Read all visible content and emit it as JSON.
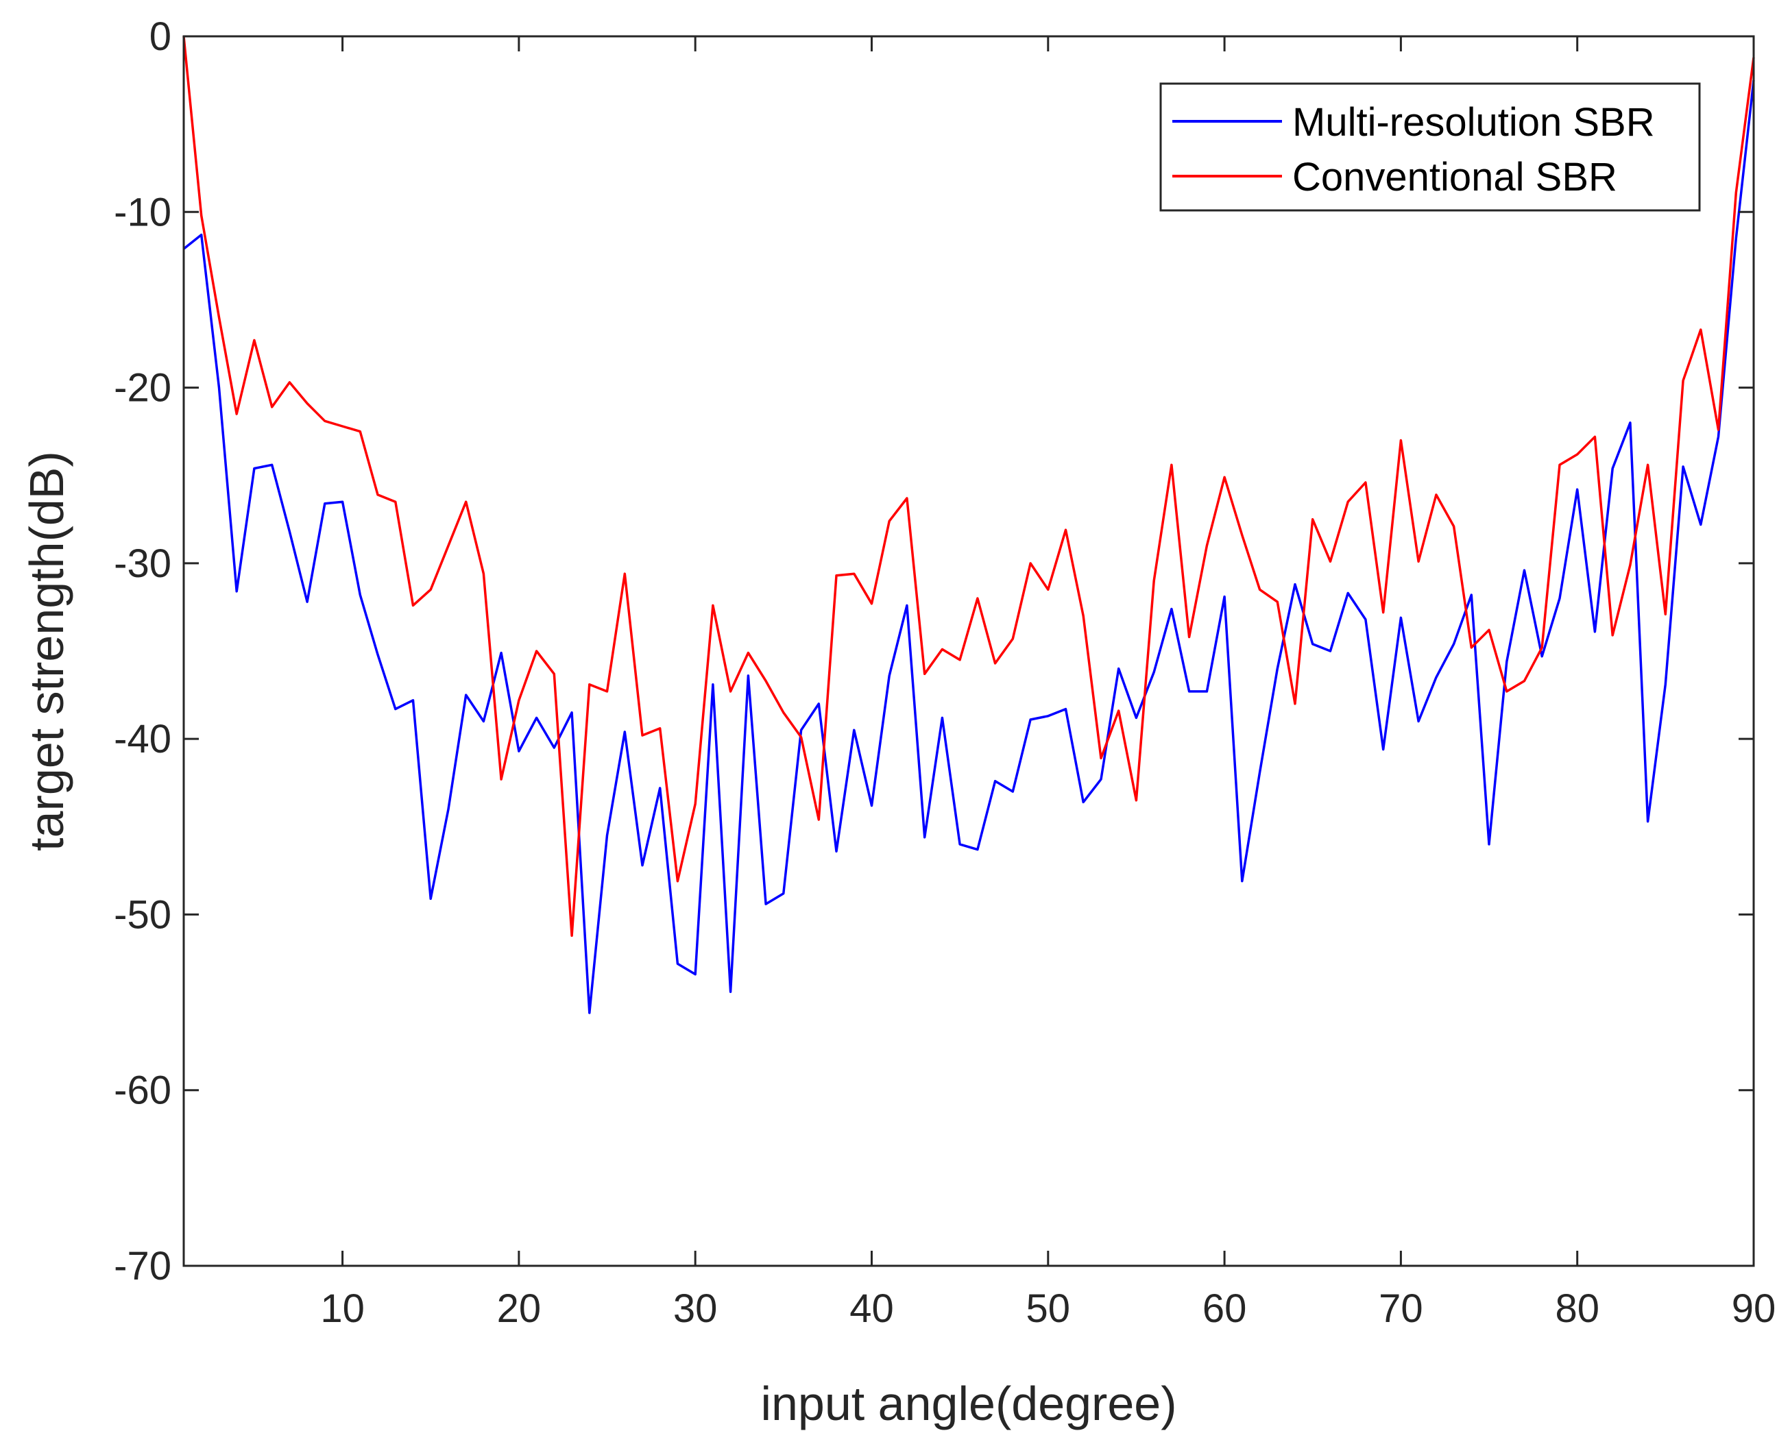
{
  "chart_data": {
    "type": "line",
    "title": "",
    "xlabel": "input angle(degree)",
    "ylabel": "target strength(dB)",
    "xlim": [
      1,
      90
    ],
    "ylim": [
      -70,
      0
    ],
    "xticks": [
      10,
      20,
      30,
      40,
      50,
      60,
      70,
      80,
      90
    ],
    "xtick_labels": [
      "10",
      "20",
      "30",
      "40",
      "50",
      "60",
      "70",
      "80",
      "90"
    ],
    "yticks": [
      0,
      -10,
      -20,
      -30,
      -40,
      -50,
      -60,
      -70
    ],
    "ytick_labels": [
      "0",
      "-10",
      "-20",
      "-30",
      "-40",
      "-50",
      "-60",
      "-70"
    ],
    "grid": false,
    "legend_position": "top-right",
    "x": [
      1,
      2,
      3,
      4,
      5,
      6,
      7,
      8,
      9,
      10,
      11,
      12,
      13,
      14,
      15,
      16,
      17,
      18,
      19,
      20,
      21,
      22,
      23,
      24,
      25,
      26,
      27,
      28,
      29,
      30,
      31,
      32,
      33,
      34,
      35,
      36,
      37,
      38,
      39,
      40,
      41,
      42,
      43,
      44,
      45,
      46,
      47,
      48,
      49,
      50,
      51,
      52,
      53,
      54,
      55,
      56,
      57,
      58,
      59,
      60,
      61,
      62,
      63,
      64,
      65,
      66,
      67,
      68,
      69,
      70,
      71,
      72,
      73,
      74,
      75,
      76,
      77,
      78,
      79,
      80,
      81,
      82,
      83,
      84,
      85,
      86,
      87,
      88,
      89,
      90
    ],
    "series": [
      {
        "name": "Multi-resolution SBR",
        "color": "#0000ff",
        "values": [
          -12.1,
          -11.3,
          -20.0,
          -31.6,
          -24.6,
          -24.4,
          -28.2,
          -32.2,
          -26.6,
          -26.5,
          -31.8,
          -35.2,
          -38.3,
          -37.8,
          -49.1,
          -44.0,
          -37.5,
          -39.0,
          -35.1,
          -40.7,
          -38.8,
          -40.5,
          -38.5,
          -55.6,
          -45.5,
          -39.6,
          -47.2,
          -42.8,
          -52.8,
          -53.4,
          -36.9,
          -54.4,
          -36.4,
          -49.4,
          -48.8,
          -39.5,
          -38.0,
          -46.4,
          -39.5,
          -43.8,
          -36.4,
          -32.4,
          -45.6,
          -38.8,
          -46.0,
          -46.3,
          -42.4,
          -43.0,
          -38.9,
          -38.7,
          -38.3,
          -43.6,
          -42.3,
          -36.0,
          -38.8,
          -36.2,
          -32.6,
          -37.3,
          -37.3,
          -31.9,
          -48.1,
          -41.9,
          -36.0,
          -31.2,
          -34.6,
          -35.0,
          -31.7,
          -33.2,
          -40.6,
          -33.1,
          -39.0,
          -36.5,
          -34.6,
          -31.8,
          -46.0,
          -35.6,
          -30.4,
          -35.3,
          -32.0,
          -25.8,
          -33.9,
          -24.6,
          -22.0,
          -44.7,
          -36.9,
          -24.5,
          -27.8,
          -22.8,
          -11.5,
          -2.5
        ]
      },
      {
        "name": "Conventional SBR",
        "color": "#ff0000",
        "values": [
          0.0,
          -10.2,
          -16.0,
          -21.5,
          -17.3,
          -21.1,
          -19.7,
          -20.9,
          -21.9,
          -22.2,
          -22.5,
          -26.1,
          -26.5,
          -32.4,
          -31.5,
          -29.0,
          -26.5,
          -30.6,
          -42.3,
          -37.8,
          -35.0,
          -36.3,
          -51.2,
          -36.9,
          -37.3,
          -30.6,
          -39.8,
          -39.4,
          -48.1,
          -43.7,
          -32.4,
          -37.3,
          -35.1,
          -36.7,
          -38.5,
          -39.9,
          -44.6,
          -30.7,
          -30.6,
          -32.3,
          -27.6,
          -26.3,
          -36.3,
          -34.9,
          -35.5,
          -32.0,
          -35.7,
          -34.3,
          -30.0,
          -31.5,
          -28.1,
          -33.0,
          -41.1,
          -38.4,
          -43.5,
          -31.0,
          -24.4,
          -34.2,
          -29.0,
          -25.1,
          -28.4,
          -31.5,
          -32.2,
          -38.0,
          -27.5,
          -29.9,
          -26.5,
          -25.4,
          -32.8,
          -23.0,
          -29.9,
          -26.1,
          -27.9,
          -34.8,
          -33.8,
          -37.3,
          -36.7,
          -34.8,
          -24.4,
          -23.8,
          -22.8,
          -34.1,
          -30.1,
          -24.4,
          -32.9,
          -19.6,
          -16.7,
          -22.4,
          -8.9,
          -1.2
        ]
      }
    ]
  }
}
